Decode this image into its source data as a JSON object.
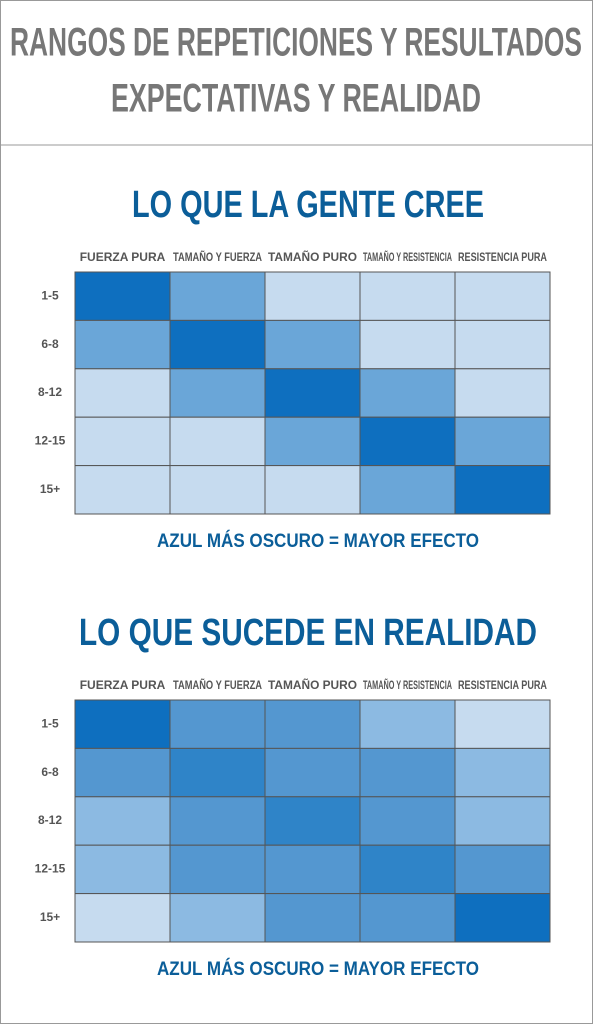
{
  "header": {
    "title": [
      "RANGOS DE REPETICIONES Y RESULTADOS",
      "EXPECTATIVAS Y REALIDAD"
    ]
  },
  "chart_data": [
    {
      "type": "heatmap",
      "title": "LO QUE LA GENTE CREE",
      "x_categories": [
        "FUERZA PURA",
        "TAMAÑO Y FUERZA",
        "TAMAÑO PURO",
        "TAMAÑO Y RESISTENCIA",
        "RESISTENCIA PURA"
      ],
      "y_categories": [
        "1-5",
        "6-8",
        "8-12",
        "12-15",
        "15+"
      ],
      "values": [
        [
          5,
          3,
          1,
          1,
          1
        ],
        [
          3,
          5,
          3,
          1,
          1
        ],
        [
          1,
          3,
          5,
          3,
          1
        ],
        [
          1,
          1,
          3,
          5,
          3
        ],
        [
          1,
          1,
          1,
          3,
          5
        ]
      ],
      "color_scale": [
        "#c6dbef",
        "#8cbae2",
        "#6aa6d8",
        "#2f84c8",
        "#0e6fbf"
      ],
      "note": "AZUL MÁS OSCURO = MAYOR EFECTO"
    },
    {
      "type": "heatmap",
      "title": "LO QUE SUCEDE EN REALIDAD",
      "x_categories": [
        "FUERZA PURA",
        "TAMAÑO Y FUERZA",
        "TAMAÑO PURO",
        "TAMAÑO Y RESISTENCIA",
        "RESISTENCIA PURA"
      ],
      "y_categories": [
        "1-5",
        "6-8",
        "8-12",
        "12-15",
        "15+"
      ],
      "values": [
        [
          5,
          3,
          3,
          2,
          1
        ],
        [
          3,
          4,
          3,
          3,
          2
        ],
        [
          2,
          3,
          4,
          3,
          2
        ],
        [
          2,
          3,
          3,
          4,
          3
        ],
        [
          1,
          2,
          3,
          3,
          5
        ]
      ],
      "color_scale": [
        "#c6dbef",
        "#8cbae2",
        "#5497d0",
        "#2f84c8",
        "#0e6fbf"
      ],
      "note": "AZUL MÁS OSCURO = MAYOR EFECTO"
    }
  ]
}
